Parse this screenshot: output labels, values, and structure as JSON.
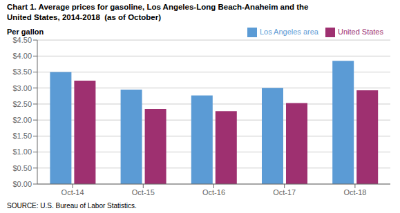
{
  "chart_data": {
    "type": "bar",
    "title": "Chart 1. Average prices for gasoline, Los Angeles-Long Beach-Anaheim and the",
    "subtitle": "United States, 2014-2018  (as of October)",
    "y_label": "Per gallon",
    "source": "SOURCE: U.S. Bureau of Labor Statistics.",
    "categories": [
      "Oct-14",
      "Oct-15",
      "Oct-16",
      "Oct-17",
      "Oct-18"
    ],
    "series": [
      {
        "name": "Los Angeles area",
        "color": "#5B9BD5",
        "values": [
          3.5,
          2.95,
          2.77,
          3.0,
          3.85
        ]
      },
      {
        "name": "United States",
        "color": "#9E3070",
        "values": [
          3.23,
          2.35,
          2.28,
          2.53,
          2.93
        ]
      }
    ],
    "ylim": [
      0,
      4.5
    ],
    "yticks": [
      {
        "value": 0.0,
        "label": "$0.00"
      },
      {
        "value": 0.5,
        "label": "$0.50"
      },
      {
        "value": 1.0,
        "label": "$1.00"
      },
      {
        "value": 1.5,
        "label": "$1.50"
      },
      {
        "value": 2.0,
        "label": "$2.00"
      },
      {
        "value": 2.5,
        "label": "$2.50"
      },
      {
        "value": 3.0,
        "label": "$3.00"
      },
      {
        "value": 3.5,
        "label": "$3.50"
      },
      {
        "value": 4.0,
        "label": "$4.00"
      },
      {
        "value": 4.5,
        "label": "$4.50"
      }
    ],
    "grid": true,
    "legend": "upper right"
  }
}
